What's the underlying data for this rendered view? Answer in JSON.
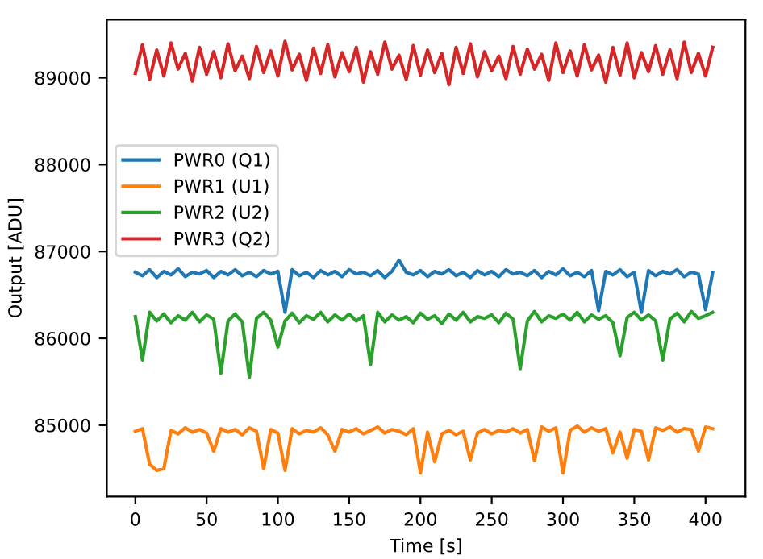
{
  "chart_data": {
    "type": "line",
    "xlabel": "Time [s]",
    "ylabel": "Output [ADU]",
    "x": [
      0,
      5,
      10,
      15,
      20,
      25,
      30,
      35,
      40,
      45,
      50,
      55,
      60,
      65,
      70,
      75,
      80,
      85,
      90,
      95,
      100,
      105,
      110,
      115,
      120,
      125,
      130,
      135,
      140,
      145,
      150,
      155,
      160,
      165,
      170,
      175,
      180,
      185,
      190,
      195,
      200,
      205,
      210,
      215,
      220,
      225,
      230,
      235,
      240,
      245,
      250,
      255,
      260,
      265,
      270,
      275,
      280,
      285,
      290,
      295,
      300,
      305,
      310,
      315,
      320,
      325,
      330,
      335,
      340,
      345,
      350,
      355,
      360,
      365,
      370,
      375,
      380,
      385,
      390,
      395,
      400,
      405
    ],
    "series": [
      {
        "name": "PWR0 (Q1)",
        "color": "#1f77b4",
        "values": [
          86760,
          86720,
          86790,
          86700,
          86770,
          86730,
          86800,
          86710,
          86760,
          86740,
          86780,
          86700,
          86770,
          86730,
          86790,
          86720,
          86760,
          86710,
          86780,
          86740,
          86770,
          86300,
          86790,
          86720,
          86760,
          86700,
          86780,
          86730,
          86770,
          86710,
          86790,
          86740,
          86760,
          86720,
          86780,
          86700,
          86770,
          86900,
          86760,
          86730,
          86780,
          86710,
          86770,
          86740,
          86790,
          86720,
          86760,
          86700,
          86780,
          86730,
          86770,
          86710,
          86790,
          86740,
          86760,
          86720,
          86780,
          86700,
          86770,
          86730,
          86800,
          86720,
          86760,
          86710,
          86780,
          86320,
          86770,
          86730,
          86790,
          86710,
          86760,
          86300,
          86780,
          86720,
          86770,
          86740,
          86790,
          86710,
          86760,
          86740,
          86330,
          86760
        ]
      },
      {
        "name": "PWR1 (U1)",
        "color": "#ff7f0e",
        "values": [
          84930,
          84960,
          84550,
          84480,
          84500,
          84940,
          84900,
          84970,
          84920,
          84950,
          84910,
          84700,
          84960,
          84920,
          84950,
          84890,
          84970,
          84930,
          84500,
          84950,
          84910,
          84480,
          84960,
          84900,
          84940,
          84920,
          84970,
          84890,
          84700,
          84950,
          84920,
          84960,
          84900,
          84940,
          84980,
          84910,
          84950,
          84930,
          84890,
          84960,
          84450,
          84920,
          84580,
          84900,
          84940,
          84890,
          84930,
          84600,
          84910,
          84950,
          84900,
          84940,
          84920,
          84960,
          84910,
          84950,
          84590,
          84980,
          84930,
          84970,
          84450,
          84940,
          84990,
          84920,
          84970,
          84930,
          84960,
          84680,
          84920,
          84620,
          84950,
          84930,
          84600,
          84970,
          84940,
          84980,
          84920,
          84960,
          84950,
          84700,
          84980,
          84960
        ]
      },
      {
        "name": "PWR2 (U2)",
        "color": "#2ca02c",
        "values": [
          86250,
          85750,
          86300,
          86200,
          86280,
          86180,
          86260,
          86210,
          86300,
          86190,
          86270,
          86220,
          85600,
          86200,
          86280,
          86190,
          85550,
          86230,
          86300,
          86210,
          85900,
          86200,
          86290,
          86180,
          86260,
          86220,
          86300,
          86190,
          86270,
          86210,
          86280,
          86200,
          86260,
          85700,
          86300,
          86190,
          86270,
          86210,
          86250,
          86180,
          86290,
          86220,
          86260,
          86170,
          86280,
          86210,
          86300,
          86190,
          86250,
          86230,
          86270,
          86180,
          86290,
          86220,
          85650,
          86200,
          86310,
          86190,
          86260,
          86230,
          86280,
          86210,
          86300,
          86190,
          86270,
          86220,
          86260,
          86180,
          85800,
          86240,
          86300,
          86210,
          86270,
          86200,
          85750,
          86220,
          86290,
          86190,
          86310,
          86230,
          86260,
          86300
        ]
      },
      {
        "name": "PWR3 (Q2)",
        "color": "#d62728",
        "values": [
          89050,
          89380,
          88980,
          89320,
          89020,
          89400,
          89100,
          89280,
          88960,
          89350,
          89040,
          89300,
          89000,
          89390,
          89080,
          89250,
          88990,
          89360,
          89060,
          89310,
          89020,
          89420,
          89090,
          89270,
          88970,
          89340,
          89050,
          89380,
          89010,
          89290,
          89070,
          89350,
          88950,
          89300,
          89040,
          89410,
          89100,
          89260,
          88980,
          89370,
          89030,
          89320,
          89060,
          89280,
          88920,
          89350,
          89050,
          89390,
          89010,
          89300,
          89080,
          89250,
          88990,
          89360,
          89040,
          89330,
          89100,
          89270,
          88970,
          89400,
          89060,
          89310,
          89020,
          89380,
          89090,
          89260,
          88950,
          89350,
          89030,
          89400,
          89000,
          89290,
          89070,
          89370,
          89040,
          89320,
          88990,
          89410,
          89060,
          89280,
          89020,
          89350
        ]
      }
    ],
    "xlim": [
      -20,
      428
    ],
    "ylim": [
      84180,
      89670
    ],
    "xticks": [
      0,
      50,
      100,
      150,
      200,
      250,
      300,
      350,
      400
    ],
    "yticks": [
      85000,
      86000,
      87000,
      88000,
      89000
    ],
    "legend": "center left",
    "grid": false
  }
}
